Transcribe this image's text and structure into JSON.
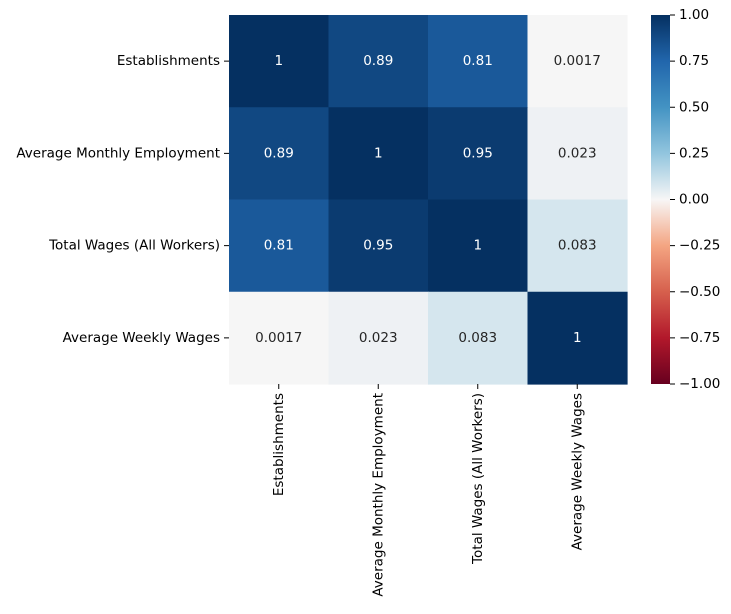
{
  "chart_data": {
    "type": "heatmap",
    "title": "",
    "xlabel": "",
    "ylabel": "",
    "row_labels": [
      "Establishments",
      "Average Monthly Employment",
      "Total Wages (All Workers)",
      "Average Weekly Wages"
    ],
    "col_labels": [
      "Establishments",
      "Average Monthly Employment",
      "Total Wages (All Workers)",
      "Average Weekly Wages"
    ],
    "values": [
      [
        1,
        0.89,
        0.81,
        0.0017
      ],
      [
        0.89,
        1,
        0.95,
        0.023
      ],
      [
        0.81,
        0.95,
        1,
        0.083
      ],
      [
        0.0017,
        0.023,
        0.083,
        1
      ]
    ],
    "annotations": [
      [
        "1",
        "0.89",
        "0.81",
        "0.0017"
      ],
      [
        "0.89",
        "1",
        "0.95",
        "0.023"
      ],
      [
        "0.81",
        "0.95",
        "1",
        "0.083"
      ],
      [
        "0.0017",
        "0.023",
        "0.083",
        "1"
      ]
    ],
    "colormap": "RdBu",
    "vmin": -1,
    "vmax": 1,
    "colorbar_ticks": [
      1.0,
      0.75,
      0.5,
      0.25,
      0.0,
      -0.25,
      -0.5,
      -0.75,
      -1.0
    ],
    "colorbar_tick_labels": [
      "1.00",
      "0.75",
      "0.50",
      "0.25",
      "0.00",
      "−0.25",
      "−0.50",
      "−0.75",
      "−1.00"
    ]
  }
}
